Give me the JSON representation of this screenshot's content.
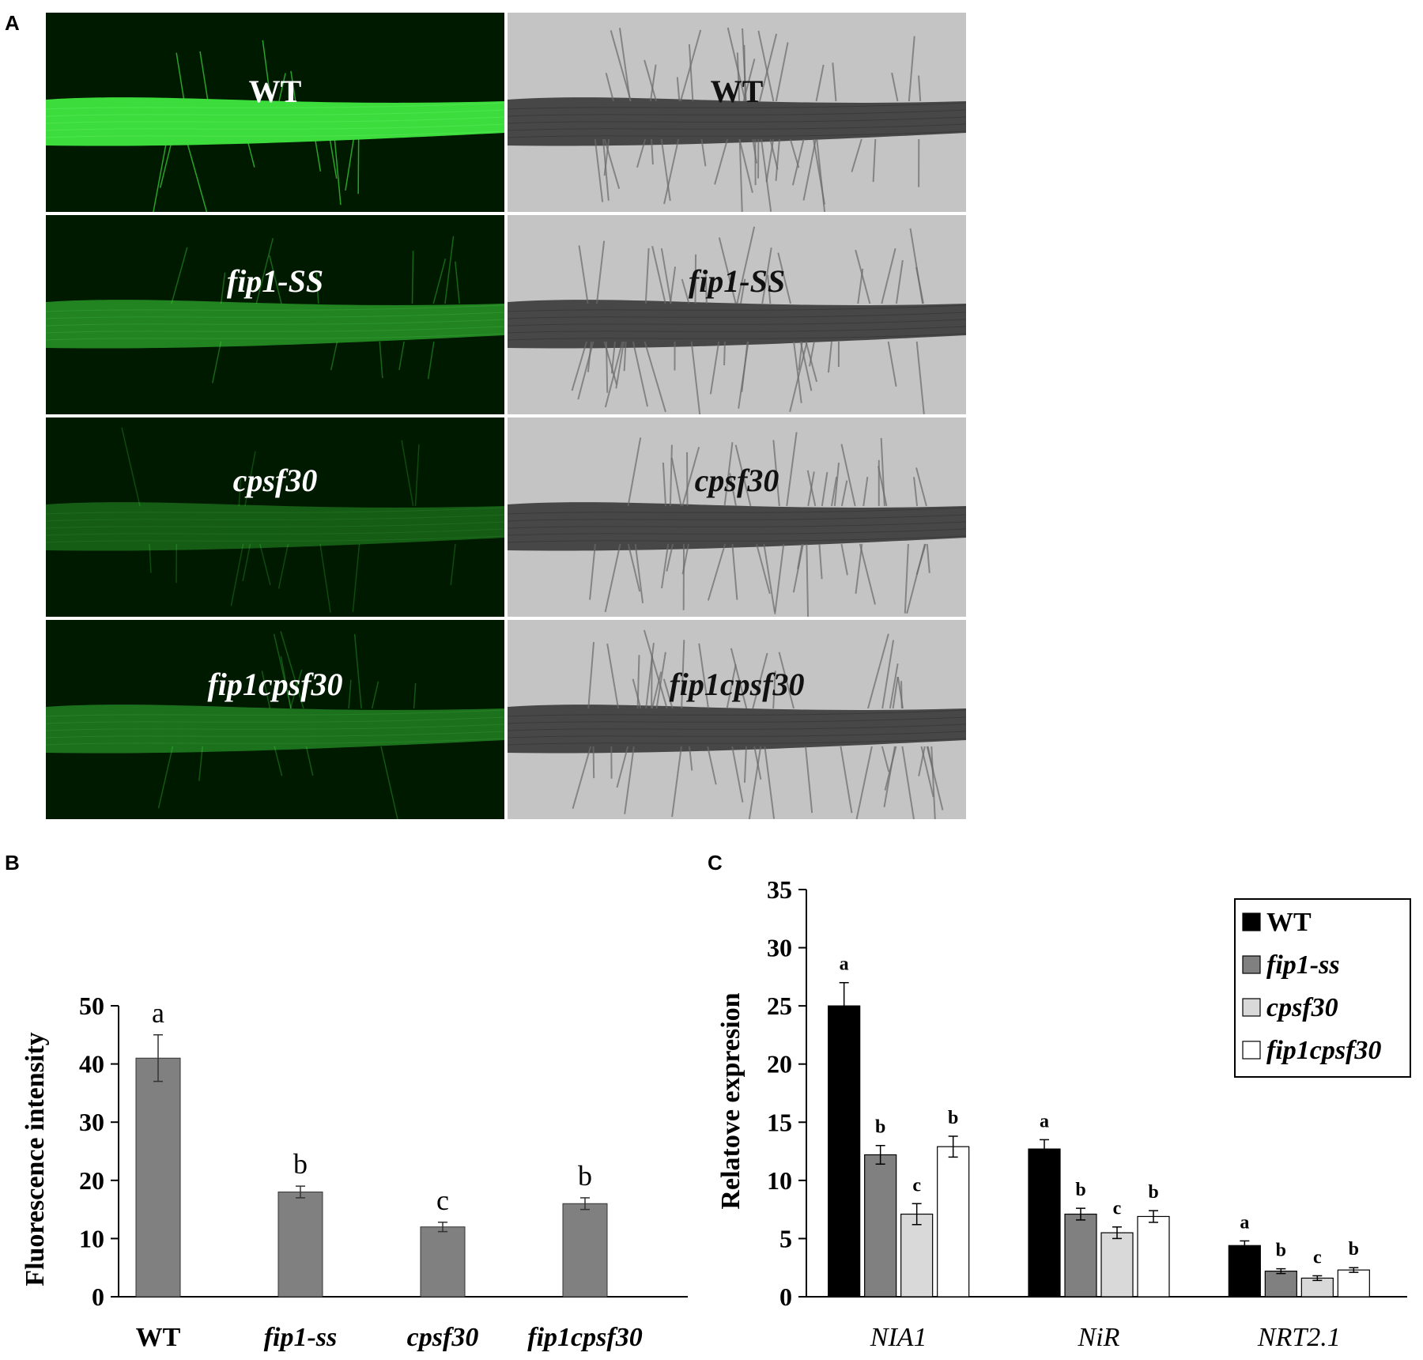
{
  "panels": {
    "a_label": "A",
    "b_label": "B",
    "c_label": "C"
  },
  "micrographs": {
    "rows": [
      {
        "fluorescence_label": "WT",
        "brightfield_label": "WT",
        "italic": false,
        "fluor_intensity": 1.0
      },
      {
        "fluorescence_label": "fip1-SS",
        "brightfield_label": "fip1-SS",
        "italic": true,
        "fluor_intensity": 0.55
      },
      {
        "fluorescence_label": "cpsf30",
        "brightfield_label": "cpsf30",
        "italic": true,
        "fluor_intensity": 0.35
      },
      {
        "fluorescence_label": "fip1cpsf30",
        "brightfield_label": "fip1cpsf30",
        "italic": true,
        "fluor_intensity": 0.45
      }
    ],
    "colors": {
      "fluor_bg": "#001a00",
      "fluor_root": "#3ddc3d",
      "bright_bg": "#c4c4c4",
      "bright_root": "#3a3a3a"
    }
  },
  "chart_data": [
    {
      "type": "bar",
      "panel": "B",
      "title": "",
      "xlabel": "",
      "ylabel": "Fluorescence intensity",
      "ylim": [
        0,
        50
      ],
      "yticks": [
        0,
        10,
        20,
        30,
        40,
        50
      ],
      "categories": [
        "WT",
        "fip1-ss",
        "cpsf30",
        "fip1cpsf30"
      ],
      "categories_italic": [
        false,
        true,
        true,
        true
      ],
      "values": [
        41,
        18,
        12,
        16
      ],
      "errors": [
        4,
        1,
        0.8,
        1
      ],
      "significance": [
        "a",
        "b",
        "c",
        "b"
      ],
      "bar_color": "#808080",
      "grid": false
    },
    {
      "type": "bar",
      "panel": "C",
      "title": "",
      "xlabel": "",
      "ylabel": "Relatove expresion",
      "ylim": [
        0,
        35
      ],
      "yticks": [
        0,
        5,
        10,
        15,
        20,
        25,
        30,
        35
      ],
      "categories": [
        "NIA1",
        "NiR",
        "NRT2.1"
      ],
      "series": [
        {
          "name": "WT",
          "color": "#000000",
          "italic": false,
          "values": [
            25,
            12.7,
            4.4
          ],
          "errors": [
            2,
            0.8,
            0.4
          ],
          "significance": [
            "a",
            "a",
            "a"
          ]
        },
        {
          "name": "fip1-ss",
          "color": "#808080",
          "italic": true,
          "values": [
            12.2,
            7.1,
            2.2
          ],
          "errors": [
            0.8,
            0.5,
            0.2
          ],
          "significance": [
            "b",
            "b",
            "b"
          ]
        },
        {
          "name": "cpsf30",
          "color": "#d9d9d9",
          "italic": true,
          "values": [
            7.1,
            5.5,
            1.6
          ],
          "errors": [
            0.9,
            0.5,
            0.2
          ],
          "significance": [
            "c",
            "c",
            "c"
          ]
        },
        {
          "name": "fip1cpsf30",
          "color": "#ffffff",
          "italic": true,
          "values": [
            12.9,
            6.9,
            2.3
          ],
          "errors": [
            0.9,
            0.5,
            0.2
          ],
          "significance": [
            "b",
            "b",
            "b"
          ]
        }
      ],
      "legend_position": "top-right",
      "grid": false
    }
  ]
}
